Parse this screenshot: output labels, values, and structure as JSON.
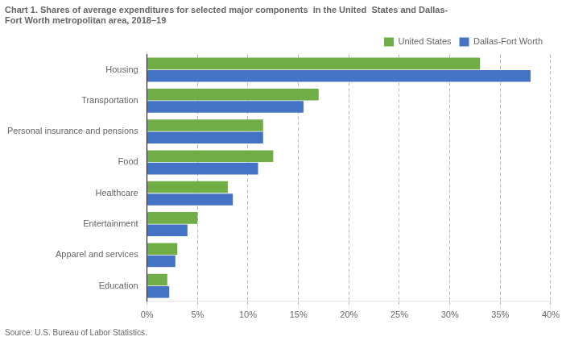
{
  "chart_data": {
    "type": "bar",
    "orientation": "horizontal",
    "title": [
      "Chart 1. Shares of average expenditures for selected major components  in the United  States and Dallas-",
      "Fort Worth metropolitan area, 2018–19"
    ],
    "categories": [
      "Housing",
      "Transportation",
      "Personal insurance and pensions",
      "Food",
      "Healthcare",
      "Entertainment",
      "Apparel and services",
      "Education"
    ],
    "series": [
      {
        "name": "United States",
        "color": "#70AD47",
        "values": [
          33.0,
          17.0,
          11.5,
          12.5,
          8.0,
          5.0,
          3.0,
          2.0
        ]
      },
      {
        "name": "Dallas-Fort Worth",
        "color": "#4472C4",
        "values": [
          38.0,
          15.5,
          11.5,
          11.0,
          8.5,
          4.0,
          2.8,
          2.2
        ]
      }
    ],
    "xlim": [
      0,
      40
    ],
    "xticks": [
      {
        "value": 0,
        "label": "0%"
      },
      {
        "value": 5,
        "label": "5%"
      },
      {
        "value": 10,
        "label": "10%"
      },
      {
        "value": 15,
        "label": "15%"
      },
      {
        "value": 20,
        "label": "20%"
      },
      {
        "value": 25,
        "label": "25%"
      },
      {
        "value": 30,
        "label": "30%"
      },
      {
        "value": 35,
        "label": "35%"
      },
      {
        "value": 40,
        "label": "40%"
      }
    ],
    "grid": true,
    "legend": "upper right",
    "annotations": [
      "Source: U.S. Bureau of Labor Statistics."
    ]
  }
}
